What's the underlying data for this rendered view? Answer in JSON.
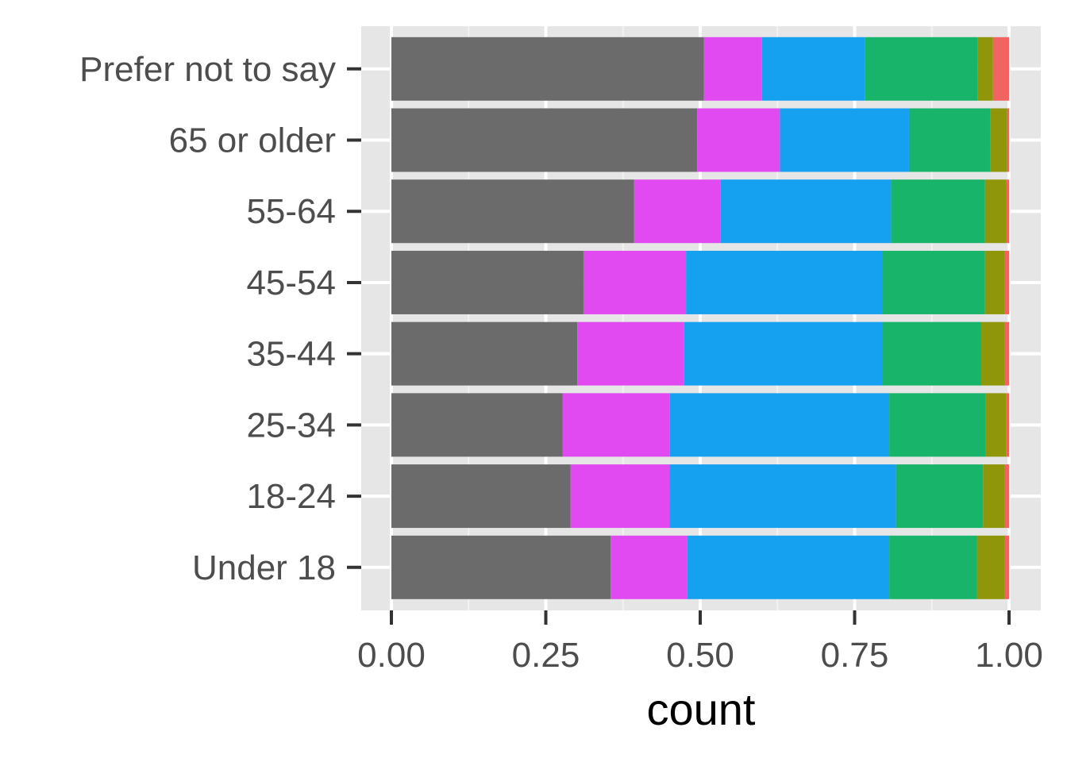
{
  "chart_data": {
    "type": "bar",
    "orientation": "horizontal",
    "stacked": "fill",
    "title": "",
    "xlabel": "count",
    "ylabel": "",
    "xlim": [
      0,
      1
    ],
    "x_ticks": [
      "0.00",
      "0.25",
      "0.50",
      "0.75",
      "1.00"
    ],
    "x_tick_values": [
      0,
      0.25,
      0.5,
      0.75,
      1.0
    ],
    "grid": true,
    "legend": "none",
    "categories": [
      "Under 18",
      "18-24",
      "25-34",
      "35-44",
      "45-54",
      "55-64",
      "65 or older",
      "Prefer not to say"
    ],
    "series": [
      {
        "color": "#6b6b6b",
        "values": [
          0.355,
          0.29,
          0.277,
          0.301,
          0.311,
          0.393,
          0.495,
          0.506
        ]
      },
      {
        "color": "#e04af0",
        "values": [
          0.124,
          0.16,
          0.174,
          0.173,
          0.166,
          0.14,
          0.134,
          0.094
        ]
      },
      {
        "color": "#16a0f0",
        "values": [
          0.327,
          0.367,
          0.355,
          0.321,
          0.318,
          0.276,
          0.209,
          0.167
        ]
      },
      {
        "color": "#18b46a",
        "values": [
          0.142,
          0.141,
          0.156,
          0.16,
          0.166,
          0.152,
          0.132,
          0.182
        ]
      },
      {
        "color": "#8f960a",
        "values": [
          0.045,
          0.035,
          0.033,
          0.038,
          0.032,
          0.035,
          0.027,
          0.025
        ]
      },
      {
        "color": "#f26462",
        "values": [
          0.007,
          0.007,
          0.005,
          0.007,
          0.007,
          0.004,
          0.003,
          0.026
        ]
      }
    ]
  }
}
